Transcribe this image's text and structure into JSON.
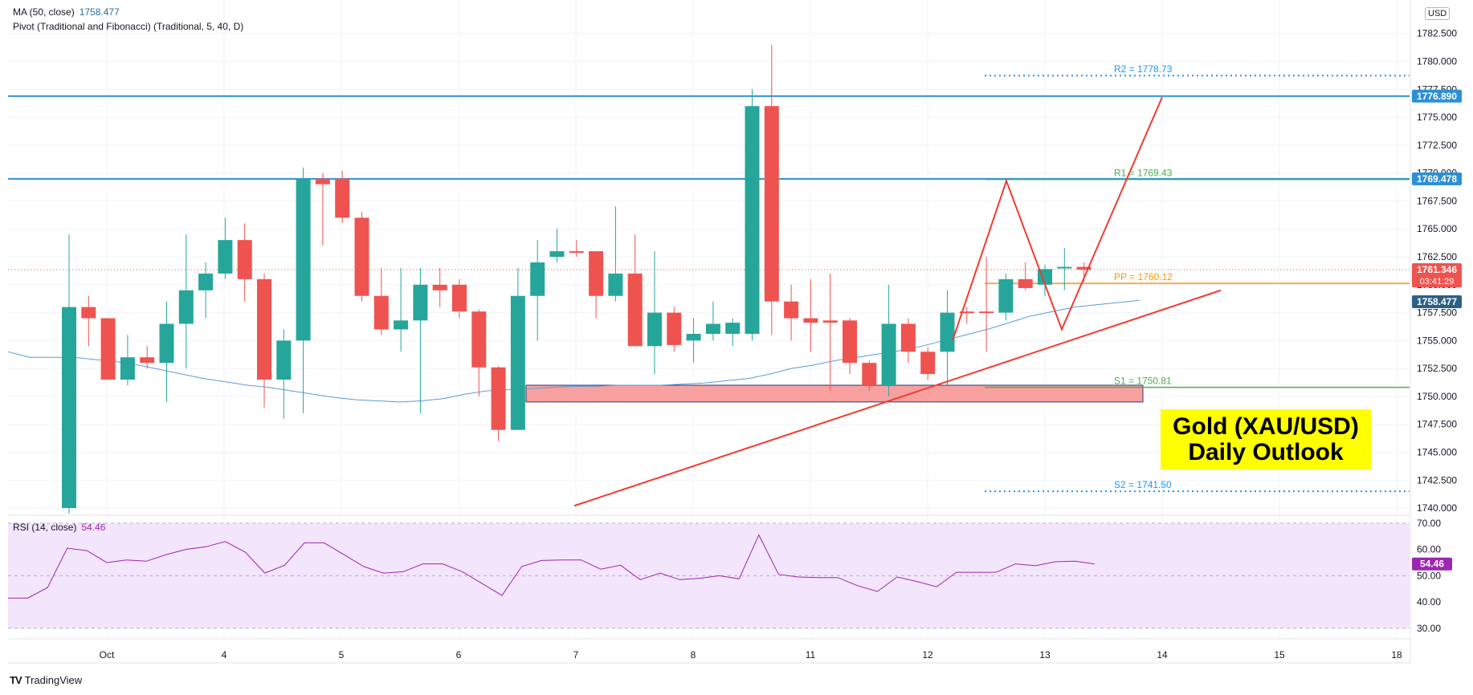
{
  "legend": {
    "ma_label": "MA (50, close)",
    "ma_value": "1758.477",
    "pivot_label": "Pivot (Traditional and Fibonacci) (Traditional, 5, 40, D)",
    "rsi_label": "RSI (14, close)",
    "rsi_value": "54.46"
  },
  "footer": {
    "brand": "TradingView"
  },
  "currency_badge": "USD",
  "title_box": {
    "line1": "Gold (XAU/USD)",
    "line2": "Daily Outlook"
  },
  "colors": {
    "up": "#26a69a",
    "down": "#ef5350",
    "ma": "#5b9bd5",
    "rsi": "#9c27b0",
    "rsi_band": "#f3e5fc",
    "resistance": "#2d8fd5",
    "pivot": "#ff9800",
    "support": "#4caf50",
    "zone": "#f8a0a0",
    "trend": "#f23b2f",
    "highlight": "#ffff00"
  },
  "chart_data": [
    {
      "type": "candlestick",
      "title": "",
      "x_axis_labels": [
        "Oct",
        "4",
        "5",
        "6",
        "7",
        "8",
        "11",
        "12",
        "13",
        "14",
        "15",
        "18"
      ],
      "y_axis_ticks": [
        "1740.000",
        "1742.500",
        "1745.000",
        "1747.500",
        "1750.000",
        "1752.500",
        "1755.000",
        "1757.500",
        "1760.000",
        "1762.500",
        "1765.000",
        "1767.500",
        "1770.000",
        "1772.500",
        "1775.000",
        "1777.500",
        "1780.000",
        "1782.500"
      ],
      "ylim": [
        1739.5,
        1785.5
      ],
      "price_labels": [
        {
          "text": "1776.890",
          "value": 1776.89,
          "color": "#2d8fd5"
        },
        {
          "text": "1769.478",
          "value": 1769.478,
          "color": "#2d8fd5"
        },
        {
          "text": "1761.346",
          "value": 1761.346,
          "color": "#ef5350",
          "sub": "03:41:29"
        },
        {
          "text": "1758.477",
          "value": 1758.477,
          "color": "#2c5f86"
        }
      ],
      "horizontal_levels": [
        {
          "value": 1776.89,
          "color": "#2d8fd5",
          "style": "solid"
        },
        {
          "value": 1769.478,
          "color": "#2d8fd5",
          "style": "solid"
        }
      ],
      "pivots": [
        {
          "label": "R2 = 1778.73",
          "value": 1778.73,
          "color": "#2196f3",
          "style": "dotted"
        },
        {
          "label": "R1 = 1769.43",
          "value": 1769.43,
          "color": "#4caf50",
          "style": "solid"
        },
        {
          "label": "PP = 1760.12",
          "value": 1760.12,
          "color": "#ff9800",
          "style": "solid"
        },
        {
          "label": "S1 = 1750.81",
          "value": 1750.81,
          "color": "#4caf50",
          "style": "solid"
        },
        {
          "label": "S2 = 1741.50",
          "value": 1741.5,
          "color": "#2196f3",
          "style": "dotted"
        }
      ],
      "support_zone": {
        "from": 1749.5,
        "to": 1751.0
      },
      "candles": [
        {
          "o": 1740.0,
          "h": 1764.5,
          "l": 1733.0,
          "c": 1758.0
        },
        {
          "o": 1758.0,
          "h": 1759.0,
          "l": 1754.5,
          "c": 1757.0
        },
        {
          "o": 1757.0,
          "h": 1757.0,
          "l": 1751.5,
          "c": 1751.5
        },
        {
          "o": 1751.5,
          "h": 1755.5,
          "l": 1751.0,
          "c": 1753.5
        },
        {
          "o": 1753.5,
          "h": 1754.5,
          "l": 1752.5,
          "c": 1753.0
        },
        {
          "o": 1753.0,
          "h": 1758.5,
          "l": 1749.5,
          "c": 1756.5
        },
        {
          "o": 1756.5,
          "h": 1764.5,
          "l": 1752.5,
          "c": 1759.5
        },
        {
          "o": 1759.5,
          "h": 1762.0,
          "l": 1757.0,
          "c": 1761.0
        },
        {
          "o": 1761.0,
          "h": 1766.0,
          "l": 1760.5,
          "c": 1764.0
        },
        {
          "o": 1764.0,
          "h": 1765.5,
          "l": 1758.5,
          "c": 1760.5
        },
        {
          "o": 1760.5,
          "h": 1761.0,
          "l": 1749.0,
          "c": 1751.5
        },
        {
          "o": 1751.5,
          "h": 1756.0,
          "l": 1748.0,
          "c": 1755.0
        },
        {
          "o": 1755.0,
          "h": 1770.5,
          "l": 1748.5,
          "c": 1769.5
        },
        {
          "o": 1769.5,
          "h": 1770.0,
          "l": 1763.5,
          "c": 1769.0
        },
        {
          "o": 1769.5,
          "h": 1770.2,
          "l": 1765.5,
          "c": 1766.0
        },
        {
          "o": 1766.0,
          "h": 1766.5,
          "l": 1758.5,
          "c": 1759.0
        },
        {
          "o": 1759.0,
          "h": 1761.5,
          "l": 1755.5,
          "c": 1756.0
        },
        {
          "o": 1756.0,
          "h": 1761.5,
          "l": 1754.0,
          "c": 1756.8
        },
        {
          "o": 1756.8,
          "h": 1761.5,
          "l": 1748.5,
          "c": 1760.0
        },
        {
          "o": 1760.0,
          "h": 1761.5,
          "l": 1758.0,
          "c": 1759.5
        },
        {
          "o": 1760.0,
          "h": 1760.5,
          "l": 1757.0,
          "c": 1757.6
        },
        {
          "o": 1757.6,
          "h": 1757.8,
          "l": 1750.0,
          "c": 1752.6
        },
        {
          "o": 1752.6,
          "h": 1752.7,
          "l": 1746.0,
          "c": 1747.0
        },
        {
          "o": 1747.0,
          "h": 1761.5,
          "l": 1747.0,
          "c": 1759.0
        },
        {
          "o": 1759.0,
          "h": 1764.0,
          "l": 1755.0,
          "c": 1762.0
        },
        {
          "o": 1762.5,
          "h": 1765.0,
          "l": 1762.0,
          "c": 1763.0
        },
        {
          "o": 1763.0,
          "h": 1764.0,
          "l": 1762.5,
          "c": 1762.9
        },
        {
          "o": 1763.0,
          "h": 1763.0,
          "l": 1757.0,
          "c": 1759.0
        },
        {
          "o": 1759.0,
          "h": 1767.0,
          "l": 1758.5,
          "c": 1761.0
        },
        {
          "o": 1761.0,
          "h": 1764.5,
          "l": 1754.5,
          "c": 1754.5
        },
        {
          "o": 1754.5,
          "h": 1763.0,
          "l": 1752.0,
          "c": 1757.5
        },
        {
          "o": 1757.5,
          "h": 1758.0,
          "l": 1754.0,
          "c": 1754.6
        },
        {
          "o": 1755.0,
          "h": 1757.0,
          "l": 1753.0,
          "c": 1755.6
        },
        {
          "o": 1755.6,
          "h": 1758.5,
          "l": 1755.0,
          "c": 1756.5
        },
        {
          "o": 1755.6,
          "h": 1757.0,
          "l": 1754.5,
          "c": 1756.6
        },
        {
          "o": 1755.6,
          "h": 1777.5,
          "l": 1755.0,
          "c": 1776.0
        },
        {
          "o": 1776.0,
          "h": 1781.5,
          "l": 1755.5,
          "c": 1758.5
        },
        {
          "o": 1758.5,
          "h": 1760.0,
          "l": 1755.0,
          "c": 1757.0
        },
        {
          "o": 1757.0,
          "h": 1760.5,
          "l": 1754.0,
          "c": 1756.6
        },
        {
          "o": 1756.8,
          "h": 1761.0,
          "l": 1750.5,
          "c": 1756.6
        },
        {
          "o": 1756.8,
          "h": 1757.0,
          "l": 1752.0,
          "c": 1753.0
        },
        {
          "o": 1753.0,
          "h": 1753.2,
          "l": 1750.5,
          "c": 1751.0
        },
        {
          "o": 1751.0,
          "h": 1760.0,
          "l": 1750.0,
          "c": 1756.5
        },
        {
          "o": 1756.5,
          "h": 1757.0,
          "l": 1753.0,
          "c": 1754.0
        },
        {
          "o": 1754.0,
          "h": 1754.4,
          "l": 1751.5,
          "c": 1752.0
        },
        {
          "o": 1754.0,
          "h": 1759.5,
          "l": 1751.0,
          "c": 1757.5
        },
        {
          "o": 1757.6,
          "h": 1758.0,
          "l": 1756.5,
          "c": 1757.5
        },
        {
          "o": 1757.6,
          "h": 1762.5,
          "l": 1754.0,
          "c": 1757.5
        },
        {
          "o": 1757.5,
          "h": 1761.0,
          "l": 1756.8,
          "c": 1760.5
        },
        {
          "o": 1760.5,
          "h": 1762.0,
          "l": 1759.5,
          "c": 1759.7
        },
        {
          "o": 1760.0,
          "h": 1761.8,
          "l": 1759.0,
          "c": 1761.4
        },
        {
          "o": 1761.5,
          "h": 1763.3,
          "l": 1759.5,
          "c": 1761.6
        },
        {
          "o": 1761.6,
          "h": 1762.0,
          "l": 1760.2,
          "c": 1761.35
        }
      ],
      "ma50": [
        1754.0,
        1753.5,
        1753.5,
        1753.5,
        1753.3,
        1753.1,
        1752.8,
        1752.4,
        1752.0,
        1751.6,
        1751.3,
        1751.0,
        1750.8,
        1750.5,
        1750.2,
        1749.9,
        1749.7,
        1749.6,
        1749.5,
        1749.6,
        1749.8,
        1750.2,
        1750.5,
        1750.6,
        1750.7,
        1750.8,
        1750.9,
        1750.9,
        1751.0,
        1751.0,
        1751.0,
        1751.1,
        1751.2,
        1751.4,
        1751.6,
        1752.0,
        1752.5,
        1752.8,
        1753.2,
        1753.5,
        1753.8,
        1754.1,
        1754.5,
        1755.0,
        1755.5,
        1756.0,
        1756.6,
        1757.2,
        1757.6,
        1758.0,
        1758.2,
        1758.4,
        1758.6
      ]
    },
    {
      "type": "line",
      "title": "RSI (14, close)",
      "y_axis_ticks": [
        "30.00",
        "40.00",
        "50.00",
        "60.00",
        "70.00"
      ],
      "ylim": [
        26,
        73
      ],
      "band": [
        30,
        70
      ],
      "current_label": "54.46",
      "values": [
        41.5,
        41.5,
        45.5,
        60.5,
        59.5,
        55.0,
        56.0,
        55.5,
        58.0,
        60.0,
        61.0,
        63.0,
        59.0,
        51.0,
        54.0,
        62.5,
        62.5,
        58.0,
        53.5,
        51.0,
        51.5,
        54.5,
        54.5,
        51.5,
        47.0,
        42.5,
        53.5,
        55.8,
        56.0,
        56.0,
        52.5,
        54.0,
        48.5,
        51.0,
        48.5,
        49.0,
        50.0,
        48.8,
        65.5,
        50.5,
        49.5,
        49.3,
        49.3,
        46.2,
        44.0,
        49.5,
        47.8,
        45.8,
        51.3,
        51.3,
        51.3,
        54.5,
        53.8,
        55.3,
        55.5,
        54.46
      ]
    }
  ]
}
